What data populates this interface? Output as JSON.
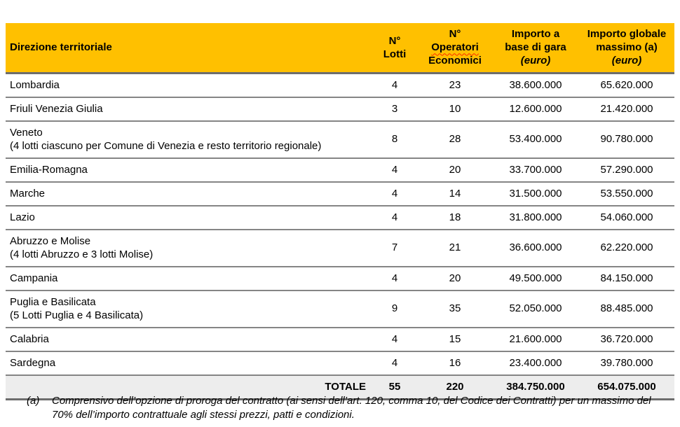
{
  "table": {
    "header": {
      "direzione": "Direzione territoriale",
      "lotti_l1": "N°",
      "lotti_l2": "Lotti",
      "operatori_l1": "N°",
      "operatori_l2": "Operatori",
      "operatori_l3": "Economici",
      "base_l1": "Importo a",
      "base_l2": "base di gara",
      "base_euro": "(euro)",
      "massimo_l1": "Importo globale",
      "massimo_l2": "massimo (a)",
      "massimo_euro": "(euro)"
    },
    "rows": [
      {
        "name": "Lombardia",
        "note": "",
        "lotti": "4",
        "operatori": "23",
        "base": "38.600.000",
        "massimo": "65.620.000"
      },
      {
        "name": "Friuli Venezia Giulia",
        "note": "",
        "lotti": "3",
        "operatori": "10",
        "base": "12.600.000",
        "massimo": "21.420.000"
      },
      {
        "name": "Veneto",
        "note": "(4 lotti ciascuno per Comune di Venezia e resto territorio regionale)",
        "lotti": "8",
        "operatori": "28",
        "base": "53.400.000",
        "massimo": "90.780.000"
      },
      {
        "name": "Emilia-Romagna",
        "note": "",
        "lotti": "4",
        "operatori": "20",
        "base": "33.700.000",
        "massimo": "57.290.000"
      },
      {
        "name": "Marche",
        "note": "",
        "lotti": "4",
        "operatori": "14",
        "base": "31.500.000",
        "massimo": "53.550.000"
      },
      {
        "name": "Lazio",
        "note": "",
        "lotti": "4",
        "operatori": "18",
        "base": "31.800.000",
        "massimo": "54.060.000"
      },
      {
        "name": "Abruzzo e Molise",
        "note": "(4 lotti Abruzzo e 3 lotti Molise)",
        "lotti": "7",
        "operatori": "21",
        "base": "36.600.000",
        "massimo": "62.220.000"
      },
      {
        "name": "Campania",
        "note": "",
        "lotti": "4",
        "operatori": "20",
        "base": "49.500.000",
        "massimo": "84.150.000"
      },
      {
        "name": "Puglia e Basilicata",
        "note": "(5 Lotti Puglia e 4 Basilicata)",
        "lotti": "9",
        "operatori": "35",
        "base": "52.050.000",
        "massimo": "88.485.000"
      },
      {
        "name": "Calabria",
        "note": "",
        "lotti": "4",
        "operatori": "15",
        "base": "21.600.000",
        "massimo": "36.720.000"
      },
      {
        "name": "Sardegna",
        "note": "",
        "lotti": "4",
        "operatori": "16",
        "base": "23.400.000",
        "massimo": "39.780.000"
      }
    ],
    "total": {
      "label": "TOTALE",
      "lotti": "55",
      "operatori": "220",
      "base": "384.750.000",
      "massimo": "654.075.000"
    }
  },
  "footnote": {
    "marker": "(a)",
    "text": "Comprensivo dell’opzione di proroga del contratto (ai sensi dell’art. 120, comma 10, del Codice dei Contratti) per un massimo del 70% dell’importo contrattuale agli stessi prezzi, patti e condizioni."
  },
  "colors": {
    "header_bg": "#FFC000",
    "row_divider": "#858585",
    "total_bg": "#EDEDED",
    "spellcheck_underline": "#FF2A00",
    "text": "#000000"
  }
}
